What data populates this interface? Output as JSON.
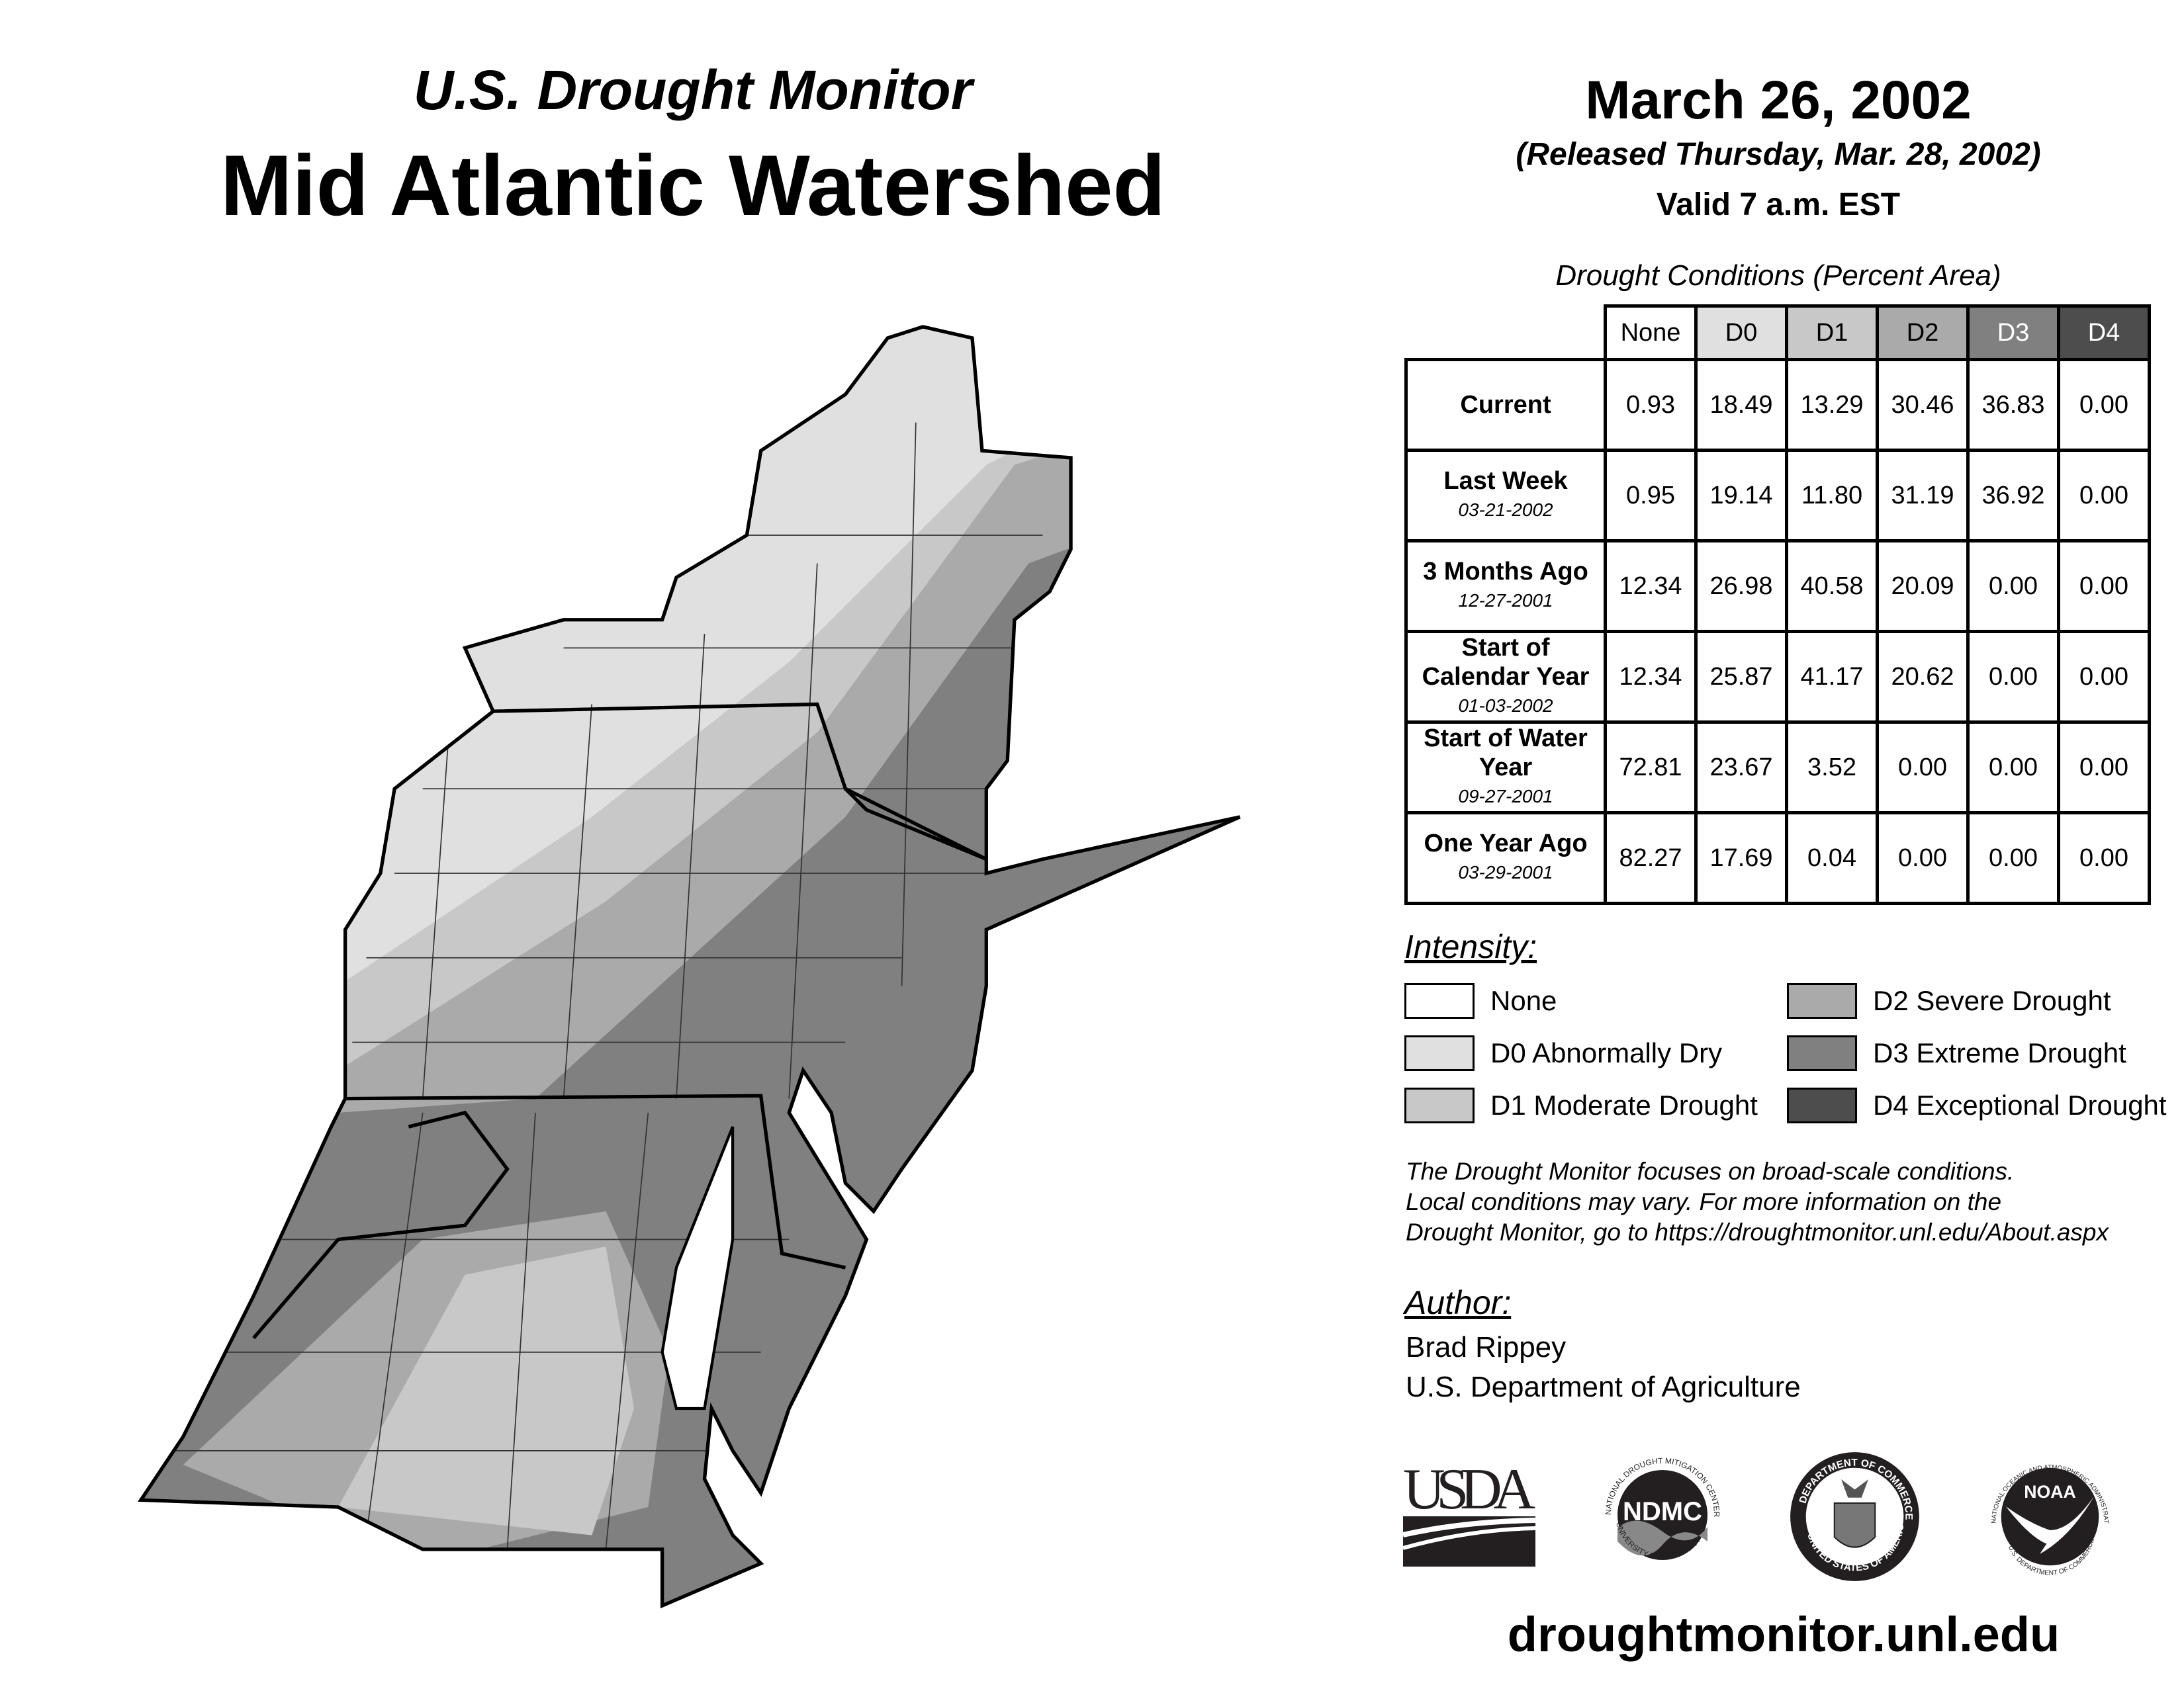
{
  "header": {
    "subtitle": "U.S. Drought Monitor",
    "title": "Mid Atlantic Watershed",
    "date": "March 26, 2002",
    "released": "(Released Thursday, Mar. 28, 2002)",
    "valid": "Valid 7 a.m. EST"
  },
  "table": {
    "caption": "Drought Conditions (Percent Area)",
    "columns": [
      "None",
      "D0",
      "D1",
      "D2",
      "D3",
      "D4"
    ],
    "column_colors": [
      "#ffffff",
      "#e0e0e0",
      "#c8c8c8",
      "#aaaaaa",
      "#808080",
      "#4d4d4d"
    ],
    "rows": [
      {
        "label": "Current",
        "date": "",
        "values": [
          "0.93",
          "18.49",
          "13.29",
          "30.46",
          "36.83",
          "0.00"
        ]
      },
      {
        "label": "Last Week",
        "date": "03-21-2002",
        "values": [
          "0.95",
          "19.14",
          "11.80",
          "31.19",
          "36.92",
          "0.00"
        ]
      },
      {
        "label": "3 Months Ago",
        "date": "12-27-2001",
        "values": [
          "12.34",
          "26.98",
          "40.58",
          "20.09",
          "0.00",
          "0.00"
        ]
      },
      {
        "label": "Start of Calendar Year",
        "date": "01-03-2002",
        "values": [
          "12.34",
          "25.87",
          "41.17",
          "20.62",
          "0.00",
          "0.00"
        ]
      },
      {
        "label": "Start of Water Year",
        "date": "09-27-2001",
        "values": [
          "72.81",
          "23.67",
          "3.52",
          "0.00",
          "0.00",
          "0.00"
        ]
      },
      {
        "label": "One Year Ago",
        "date": "03-29-2001",
        "values": [
          "82.27",
          "17.69",
          "0.04",
          "0.00",
          "0.00",
          "0.00"
        ]
      }
    ]
  },
  "legend": {
    "title": "Intensity:",
    "items": [
      {
        "label": "None",
        "color": "#ffffff"
      },
      {
        "label": "D0 Abnormally Dry",
        "color": "#e0e0e0"
      },
      {
        "label": "D1 Moderate Drought",
        "color": "#c8c8c8"
      },
      {
        "label": "D2 Severe Drought",
        "color": "#aaaaaa"
      },
      {
        "label": "D3 Extreme Drought",
        "color": "#808080"
      },
      {
        "label": "D4 Exceptional Drought",
        "color": "#4d4d4d"
      }
    ]
  },
  "disclaimer": [
    "The Drought Monitor focuses on broad-scale conditions.",
    "Local conditions may vary. For more information on the",
    "Drought Monitor, go to https://droughtmonitor.unl.edu/About.aspx"
  ],
  "author": {
    "heading": "Author:",
    "name": "Brad Rippey",
    "org": "U.S. Department of Agriculture"
  },
  "logos": {
    "usda": "USDA",
    "ndmc": "NDMC",
    "ndmc_ring_top": "NATIONAL DROUGHT MITIGATION CENTER",
    "ndmc_ring_bottom": "UNIVERSITY OF NEBRASKA",
    "doc_ring_top": "DEPARTMENT OF COMMERCE",
    "doc_ring_bottom": "UNITED STATES OF AMERICA",
    "noaa": "NOAA",
    "noaa_ring_top": "NATIONAL OCEANIC AND ATMOSPHERIC ADMINISTRATION",
    "noaa_ring_bottom": "U.S. DEPARTMENT OF COMMERCE"
  },
  "url": "droughtmonitor.unl.edu"
}
